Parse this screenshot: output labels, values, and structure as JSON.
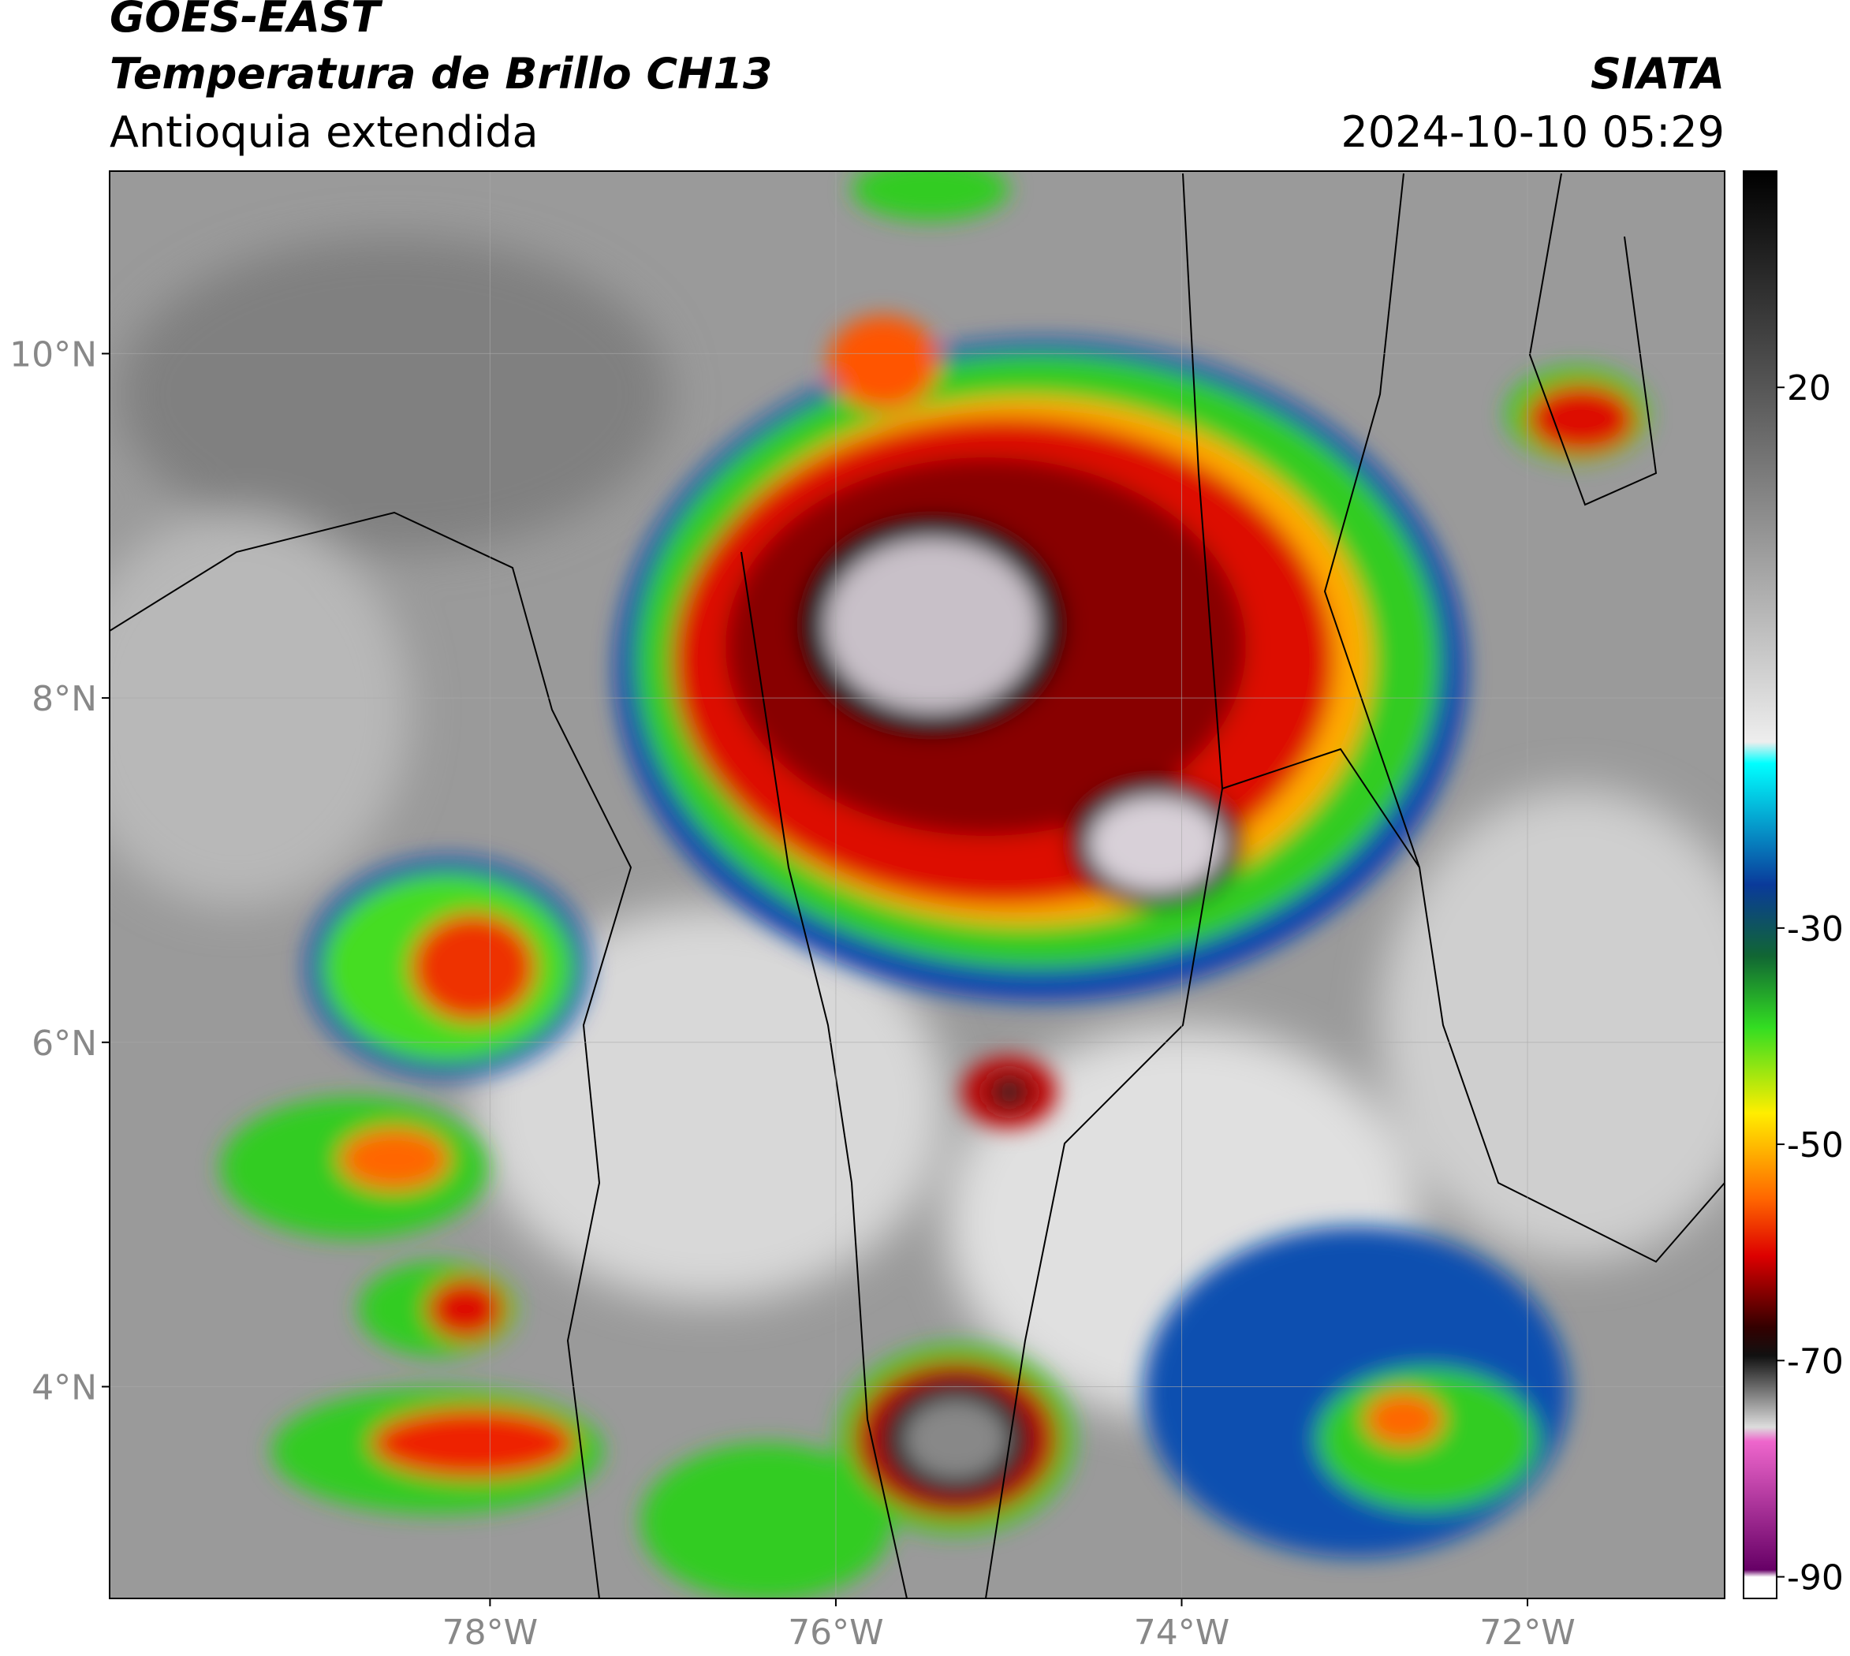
{
  "header": {
    "title_line1": "GOES-EAST",
    "title_line2": "Temperatura de Brillo CH13",
    "subtitle": "Antioquia extendida",
    "source": "SIATA",
    "timestamp": "2024-10-10 05:29"
  },
  "map": {
    "lon_range": [
      -80.2,
      -70.86
    ],
    "lat_range": [
      2.77,
      11.06
    ],
    "lon_ticks": [
      {
        "value": -78,
        "label": "78°W"
      },
      {
        "value": -76,
        "label": "76°W"
      },
      {
        "value": -74,
        "label": "74°W"
      },
      {
        "value": -72,
        "label": "72°W"
      }
    ],
    "lat_ticks": [
      {
        "value": 10,
        "label": "10°N"
      },
      {
        "value": 8,
        "label": "8°N"
      },
      {
        "value": 6,
        "label": "6°N"
      },
      {
        "value": 4,
        "label": "4°N"
      }
    ]
  },
  "colorbar": {
    "range": [
      -92,
      40
    ],
    "ticks": [
      20,
      -30,
      -50,
      -70,
      -90
    ]
  }
}
